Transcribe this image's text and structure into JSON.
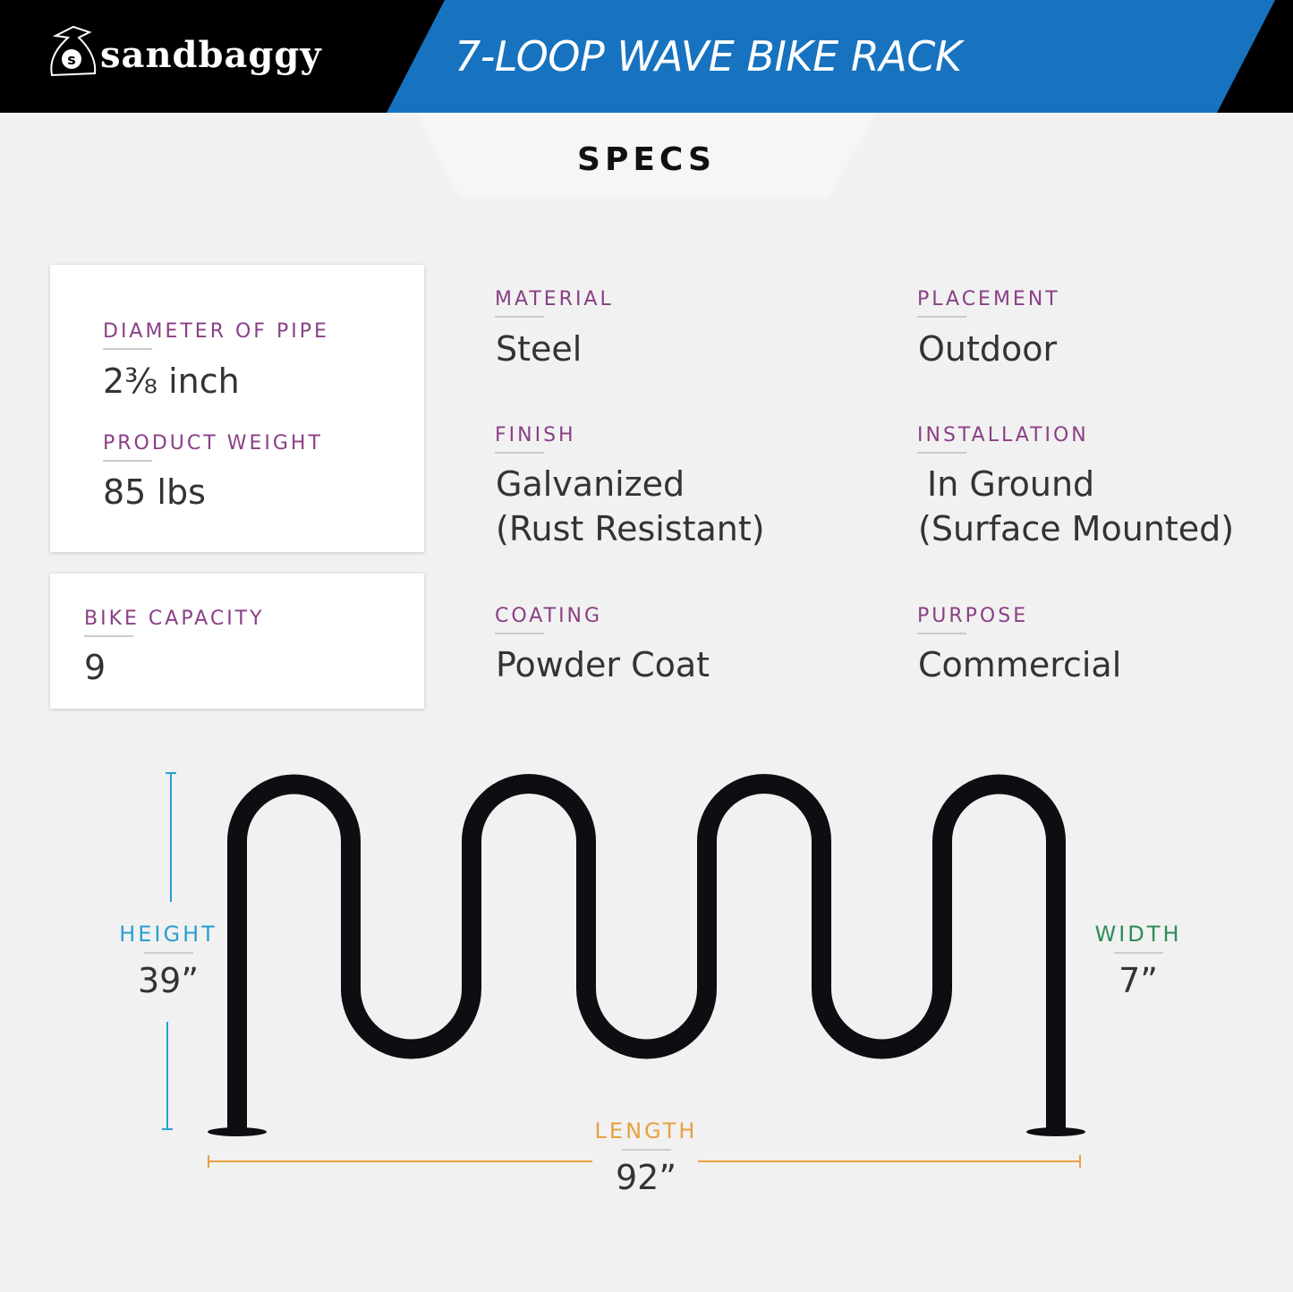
{
  "header": {
    "brand": "sandbaggy",
    "title": "7-LOOP WAVE BIKE RACK"
  },
  "section": "SPECS",
  "specs": {
    "diameter": {
      "label": "DIAMETER OF PIPE",
      "value": "2⅜ inch"
    },
    "weight": {
      "label": "PRODUCT WEIGHT",
      "value": "85 lbs"
    },
    "capacity": {
      "label": "BIKE CAPACITY",
      "value": "9"
    },
    "material": {
      "label": "MATERIAL",
      "value": "Steel"
    },
    "placement": {
      "label": "PLACEMENT",
      "value": "Outdoor"
    },
    "finish": {
      "label": "FINISH",
      "value": "Galvanized",
      "value2": "(Rust Resistant)"
    },
    "installation": {
      "label": "INSTALLATION",
      "value": "In Ground",
      "value2": "(Surface Mounted)"
    },
    "coating": {
      "label": "COATING",
      "value": "Powder Coat"
    },
    "purpose": {
      "label": "PURPOSE",
      "value": "Commercial"
    }
  },
  "dimensions": {
    "height": {
      "label": "HEIGHT",
      "value": "39”",
      "color": "#2a9fd0"
    },
    "width": {
      "label": "WIDTH",
      "value": "7”",
      "color": "#2e8b57"
    },
    "length": {
      "label": "LENGTH",
      "value": "92”",
      "color": "#e8a040"
    }
  }
}
